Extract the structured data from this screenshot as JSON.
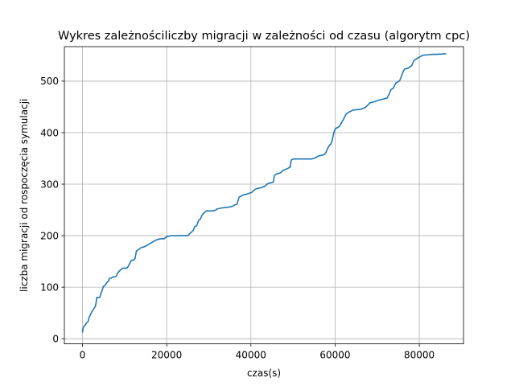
{
  "chart_data": {
    "type": "line",
    "title": "Wykres zależnościliczby migracji w zależności od czasu (algorytm cpc)",
    "xlabel": "czas(s)",
    "ylabel": "liczba migracji od rospoczęcia symulacji",
    "xlim": [
      -4300,
      90500
    ],
    "ylim": [
      -10,
      567
    ],
    "xticks": [
      0,
      20000,
      40000,
      60000,
      80000
    ],
    "yticks": [
      0,
      100,
      200,
      300,
      400,
      500
    ],
    "xtick_labels": [
      "0",
      "20000",
      "40000",
      "60000",
      "80000"
    ],
    "ytick_labels": [
      "0",
      "100",
      "200",
      "300",
      "400",
      "500"
    ],
    "grid": true,
    "series": [
      {
        "color": "#1f77b4",
        "x": [
          0,
          200,
          600,
          1000,
          1300,
          1600,
          1800,
          2200,
          2600,
          3000,
          3200,
          3400,
          3700,
          4100,
          4400,
          4700,
          5000,
          5300,
          5800,
          6200,
          6400,
          6900,
          7200,
          7700,
          8000,
          8400,
          9100,
          9400,
          9700,
          10300,
          10700,
          11600,
          12200,
          12500,
          12800,
          13800,
          14300,
          14500,
          14800,
          15500,
          16300,
          17300,
          18400,
          19400,
          20000,
          21000,
          22000,
          23000,
          24000,
          25000,
          25600,
          26300,
          26700,
          27100,
          27600,
          28000,
          28400,
          28700,
          29400,
          30500,
          31500,
          32000,
          33200,
          34400,
          35600,
          36200,
          36700,
          37200,
          38200,
          39100,
          40200,
          41000,
          41600,
          42400,
          43300,
          44000,
          45300,
          45600,
          46100,
          47000,
          47700,
          48600,
          49300,
          49600,
          50100,
          51000,
          52600,
          54000,
          54500,
          55300,
          56100,
          57300,
          57800,
          58200,
          58700,
          59000,
          59300,
          59700,
          60100,
          60600,
          61000,
          62000,
          62600,
          63300,
          64300,
          65600,
          66300,
          67200,
          68300,
          69300,
          70300,
          71300,
          72300,
          72800,
          73300,
          73800,
          74400,
          75200,
          75400,
          76300,
          76600,
          77300,
          77600,
          78200,
          78700,
          79300,
          79700,
          80300,
          80700,
          81700,
          83300,
          84200,
          86200
        ],
        "y": [
          13,
          22,
          26,
          31,
          33,
          42,
          45,
          52,
          57,
          62,
          68,
          80,
          80,
          80,
          88,
          95,
          102,
          103,
          109,
          112,
          117,
          118,
          120,
          120,
          121,
          128,
          134,
          136,
          137,
          137,
          138,
          152,
          153,
          156,
          170,
          176,
          178,
          178,
          179,
          182,
          186,
          191,
          194,
          194,
          198,
          200,
          200,
          200,
          200,
          200,
          205,
          210,
          218,
          219,
          230,
          232,
          240,
          243,
          248,
          248,
          249,
          252,
          254,
          255,
          257,
          260,
          261,
          275,
          279,
          281,
          284,
          290,
          292,
          293,
          296,
          301,
          304,
          317,
          320,
          322,
          327,
          330,
          333,
          347,
          349,
          349,
          349,
          349,
          349,
          351,
          355,
          357,
          361,
          369,
          376,
          378,
          385,
          400,
          408,
          410,
          412,
          426,
          436,
          440,
          444,
          445,
          446,
          449,
          458,
          460,
          463,
          465,
          467,
          474,
          484,
          486,
          496,
          500,
          502,
          521,
          524,
          525,
          527,
          530,
          540,
          543,
          545,
          548,
          550,
          551,
          552,
          552,
          553
        ]
      }
    ]
  }
}
